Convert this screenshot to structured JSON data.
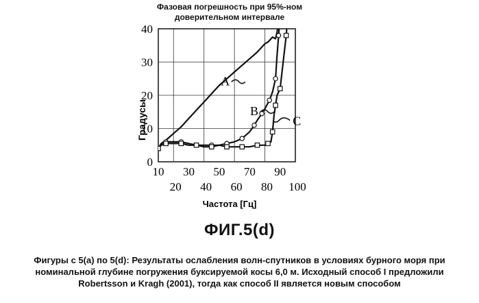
{
  "chart_data": {
    "type": "line",
    "title_line1": "Фазовая погрешность при 95%-ном",
    "title_line2": "доверительном интервале",
    "xlabel": "Частота [Гц]",
    "ylabel": "Градусы",
    "xlim": [
      10,
      100
    ],
    "ylim": [
      0,
      40
    ],
    "x_ticks_upper": [
      "10",
      "30",
      "50",
      "70",
      "90"
    ],
    "x_ticks_lower": [
      "20",
      "40",
      "60",
      "80",
      "100"
    ],
    "y_ticks": [
      "0",
      "10",
      "20",
      "30",
      "40"
    ],
    "grid": true,
    "series": [
      {
        "name": "A",
        "marker": "none",
        "x": [
          10,
          12,
          15,
          20,
          25,
          30,
          35,
          40,
          45,
          50,
          55,
          60,
          65,
          70,
          75,
          80,
          82,
          85,
          87,
          88,
          89,
          90
        ],
        "y": [
          4,
          5.5,
          6.5,
          8.5,
          10.5,
          13,
          15.5,
          18,
          20.5,
          23,
          25,
          27,
          29,
          31,
          33,
          35.5,
          36,
          37.5,
          37,
          39,
          42,
          46
        ]
      },
      {
        "name": "B",
        "marker": "circle",
        "x": [
          10,
          12,
          15,
          20,
          25,
          30,
          35,
          40,
          45,
          50,
          55,
          60,
          65,
          70,
          73,
          75,
          78,
          80,
          83,
          85,
          87,
          88,
          89,
          90
        ],
        "y": [
          4,
          5.5,
          6,
          6,
          6,
          5.5,
          5,
          5,
          5,
          5,
          5.5,
          6,
          7,
          9,
          11,
          12.5,
          14.5,
          16,
          18.5,
          21,
          25,
          32,
          38,
          44
        ]
      },
      {
        "name": "C",
        "marker": "square",
        "x": [
          10,
          12,
          15,
          20,
          25,
          30,
          35,
          40,
          45,
          50,
          55,
          60,
          65,
          70,
          75,
          80,
          82,
          84,
          85,
          86,
          87,
          88,
          90,
          92,
          94,
          95
        ],
        "y": [
          4,
          5,
          5.5,
          5.5,
          5.5,
          5,
          5,
          4.5,
          4.5,
          5,
          4.5,
          4.5,
          4.5,
          4.5,
          5,
          5,
          5.5,
          6,
          9,
          14,
          17,
          20,
          22,
          30,
          38,
          44
        ]
      }
    ],
    "annotations": [
      {
        "label": "A",
        "x": 54,
        "y": 23
      },
      {
        "label": "B",
        "x": 73,
        "y": 14
      },
      {
        "label": "C",
        "x": 101,
        "y": 11
      }
    ]
  },
  "figure_label": "ФИГ.5(d)",
  "caption": [
    "Фигуры с 5(a) по 5(d): Результаты   ослабления волн-спутников в условиях бурного моря при",
    "номинальной глубине погружения буксируемой косы 6,0 м. Исходный способ I предложили",
    "Robertsson и Kragh (2001), тогда как способ II является новым способом"
  ],
  "colors": {
    "ink": "#111111",
    "grid": "#333333"
  }
}
